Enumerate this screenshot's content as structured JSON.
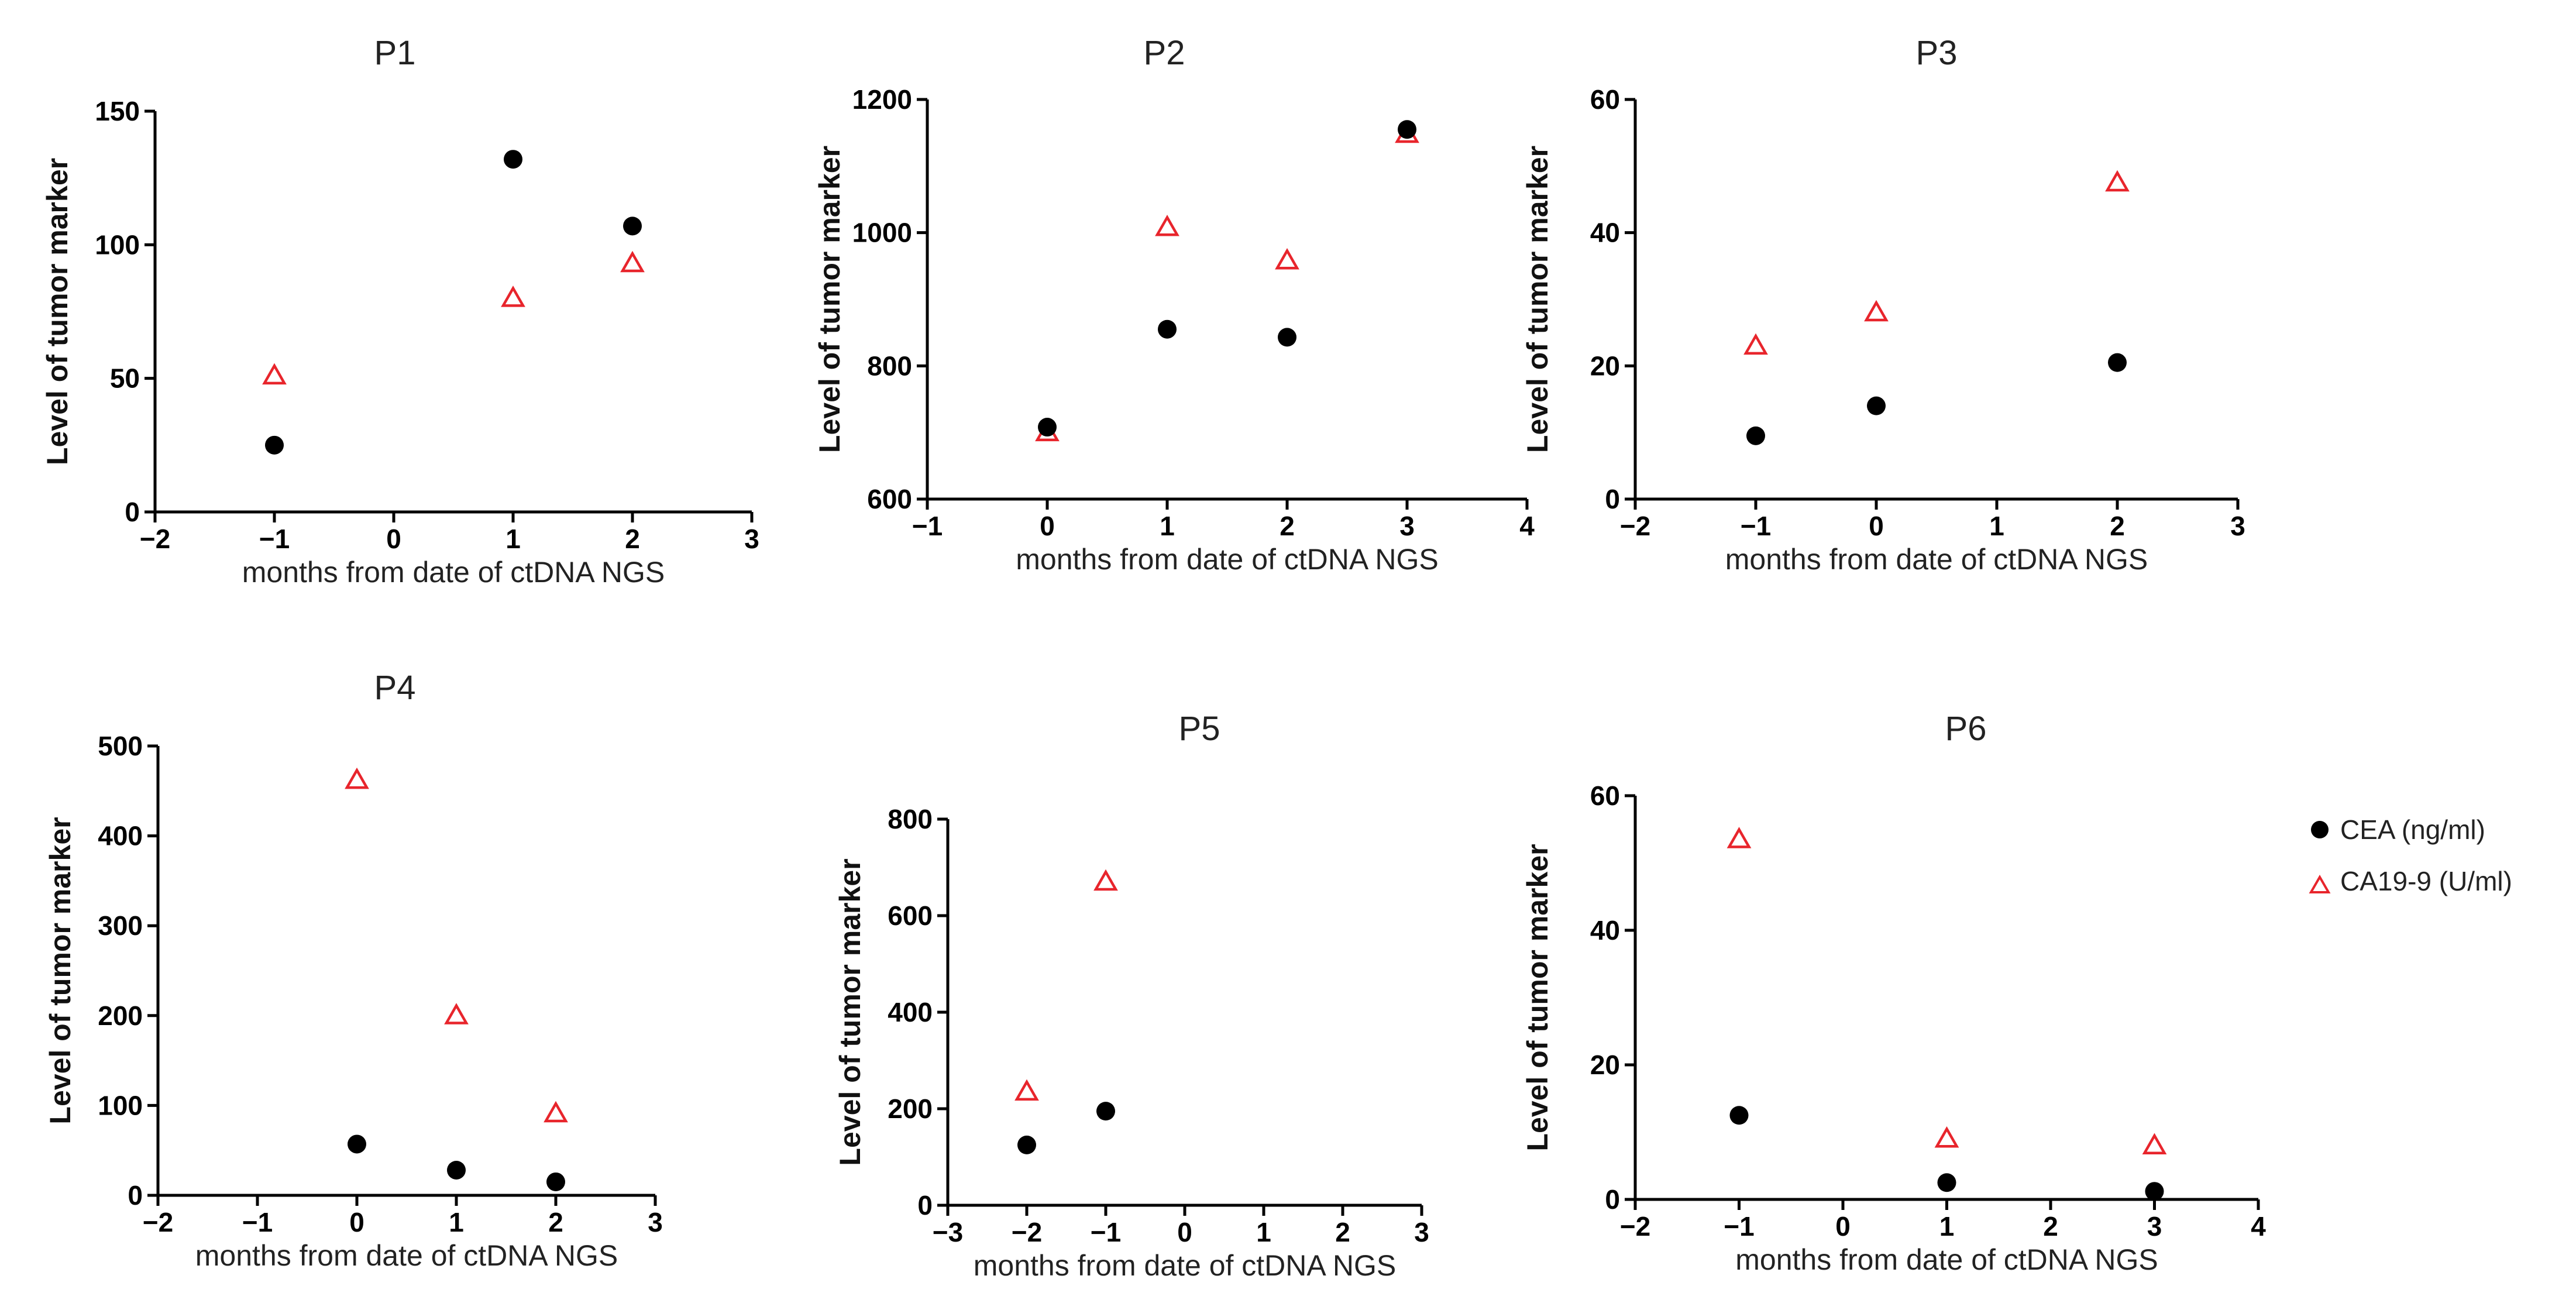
{
  "chart_data": [
    {
      "type": "scatter",
      "title": "P1",
      "xlabel": "months from date of ctDNA NGS",
      "ylabel": "Level of tumor marker",
      "xlim": [
        -2,
        3
      ],
      "ylim": [
        0,
        150
      ],
      "xticks": [
        -2,
        -1,
        0,
        1,
        2,
        3
      ],
      "yticks": [
        0,
        50,
        100,
        150
      ],
      "series": [
        {
          "name": "CEA (ng/ml)",
          "points": [
            [
              -1,
              25
            ],
            [
              1,
              132
            ],
            [
              2,
              107
            ]
          ]
        },
        {
          "name": "CA19-9 (U/ml)",
          "points": [
            [
              -1,
              51
            ],
            [
              1,
              80
            ],
            [
              2,
              93
            ]
          ]
        }
      ]
    },
    {
      "type": "scatter",
      "title": "P2",
      "xlabel": "months from date of ctDNA NGS",
      "ylabel": "Level of tumor marker",
      "xlim": [
        -1,
        4
      ],
      "ylim": [
        600,
        1200
      ],
      "xticks": [
        -1,
        0,
        1,
        2,
        3,
        4
      ],
      "yticks": [
        600,
        800,
        1000,
        1200
      ],
      "series": [
        {
          "name": "CEA (ng/ml)",
          "points": [
            [
              0,
              708
            ],
            [
              1,
              855
            ],
            [
              2,
              843
            ],
            [
              3,
              1155
            ]
          ]
        },
        {
          "name": "CA19-9 (U/ml)",
          "points": [
            [
              0,
              700
            ],
            [
              1,
              1008
            ],
            [
              2,
              958
            ],
            [
              3,
              1148
            ]
          ]
        }
      ]
    },
    {
      "type": "scatter",
      "title": "P3",
      "xlabel": "months from date of ctDNA NGS",
      "ylabel": "Level of tumor marker",
      "xlim": [
        -2,
        3
      ],
      "ylim": [
        0,
        60
      ],
      "xticks": [
        -2,
        -1,
        0,
        1,
        2,
        3
      ],
      "yticks": [
        0,
        20,
        40,
        60
      ],
      "series": [
        {
          "name": "CEA (ng/ml)",
          "points": [
            [
              -1,
              9.5
            ],
            [
              0,
              14
            ],
            [
              2,
              20.5
            ]
          ]
        },
        {
          "name": "CA19-9 (U/ml)",
          "points": [
            [
              -1,
              23
            ],
            [
              0,
              28
            ],
            [
              2,
              47.5
            ]
          ]
        }
      ]
    },
    {
      "type": "scatter",
      "title": "P4",
      "xlabel": "months from date of ctDNA NGS",
      "ylabel": "Level of tumor marker",
      "xlim": [
        -2,
        3
      ],
      "ylim": [
        0,
        500
      ],
      "xticks": [
        -2,
        -1,
        0,
        1,
        2,
        3
      ],
      "yticks": [
        0,
        100,
        200,
        300,
        400,
        500
      ],
      "series": [
        {
          "name": "CEA (ng/ml)",
          "points": [
            [
              0,
              57
            ],
            [
              1,
              28
            ],
            [
              2,
              15
            ]
          ]
        },
        {
          "name": "CA19-9 (U/ml)",
          "points": [
            [
              0,
              462
            ],
            [
              1,
              200
            ],
            [
              2,
              91
            ]
          ]
        }
      ]
    },
    {
      "type": "scatter",
      "title": "P5",
      "xlabel": "months from date of ctDNA NGS",
      "ylabel": "Level of tumor marker",
      "xlim": [
        -3,
        3
      ],
      "ylim": [
        0,
        800
      ],
      "xticks": [
        -3,
        -2,
        -1,
        0,
        1,
        2,
        3
      ],
      "yticks": [
        0,
        200,
        400,
        600,
        800
      ],
      "series": [
        {
          "name": "CEA (ng/ml)",
          "points": [
            [
              -2,
              125
            ],
            [
              -1,
              195
            ]
          ]
        },
        {
          "name": "CA19-9 (U/ml)",
          "points": [
            [
              -2,
              235
            ],
            [
              -1,
              670
            ]
          ]
        }
      ]
    },
    {
      "type": "scatter",
      "title": "P6",
      "xlabel": "months from date of ctDNA NGS",
      "ylabel": "Level of tumor marker",
      "xlim": [
        -2,
        4
      ],
      "ylim": [
        0,
        60
      ],
      "xticks": [
        -2,
        -1,
        0,
        1,
        2,
        3,
        4
      ],
      "yticks": [
        0,
        20,
        40,
        60
      ],
      "series": [
        {
          "name": "CEA (ng/ml)",
          "points": [
            [
              -1,
              12.5
            ],
            [
              1,
              2.5
            ],
            [
              3,
              1.2
            ]
          ]
        },
        {
          "name": "CA19-9 (U/ml)",
          "points": [
            [
              -1,
              53.5
            ],
            [
              1,
              9
            ],
            [
              3,
              8
            ]
          ]
        }
      ]
    }
  ],
  "legend": {
    "position": "right",
    "items": [
      {
        "label": "CEA (ng/ml)",
        "marker": "filled-circle",
        "color": "#000000"
      },
      {
        "label": "CA19-9 (U/ml)",
        "marker": "open-triangle",
        "color": "#e8252c"
      }
    ]
  },
  "colors": {
    "cea": "#000000",
    "ca199": "#e8252c",
    "axis": "#000000"
  }
}
